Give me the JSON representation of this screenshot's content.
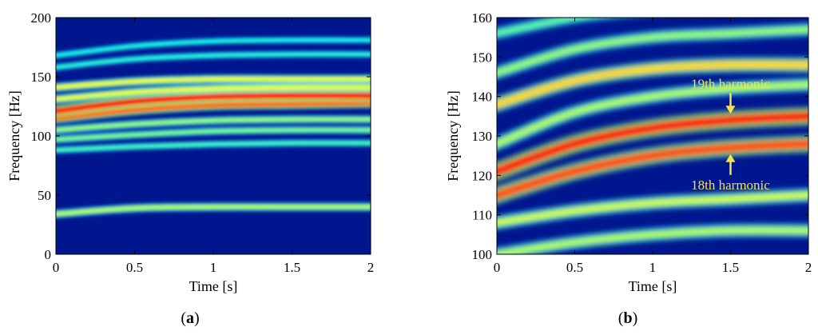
{
  "chart_data": [
    {
      "type": "heatmap",
      "panel_label": "a",
      "xlabel": "Time [s]",
      "ylabel": "Frequency [Hz]",
      "xlim": [
        0,
        2
      ],
      "ylim": [
        0,
        200
      ],
      "xticks": [
        0,
        0.5,
        1,
        1.5,
        2
      ],
      "xtick_labels": [
        "0",
        "0.5",
        "1",
        "1.5",
        "2"
      ],
      "yticks": [
        0,
        50,
        100,
        150,
        200
      ],
      "ytick_labels": [
        "0",
        "50",
        "100",
        "150",
        "200"
      ],
      "background_color": "#00168f",
      "ridges": [
        {
          "x": [
            0,
            0.5,
            1,
            1.5,
            2
          ],
          "y": [
            34,
            39,
            40,
            40,
            40
          ],
          "intensity": 0.45
        },
        {
          "x": [
            0,
            0.5,
            1,
            1.5,
            2
          ],
          "y": [
            88,
            91,
            93,
            94,
            94
          ],
          "intensity": 0.25
        },
        {
          "x": [
            0,
            0.5,
            1,
            1.5,
            2
          ],
          "y": [
            97,
            101,
            104,
            105,
            105
          ],
          "intensity": 0.35
        },
        {
          "x": [
            0,
            0.5,
            1,
            1.5,
            2
          ],
          "y": [
            105,
            110,
            113,
            114,
            114
          ],
          "intensity": 0.4
        },
        {
          "x": [
            0,
            0.5,
            1,
            1.5,
            2
          ],
          "y": [
            115,
            122,
            126,
            127,
            128
          ],
          "intensity": 0.85
        },
        {
          "x": [
            0,
            0.5,
            1,
            1.5,
            2
          ],
          "y": [
            121,
            129,
            133,
            134,
            134
          ],
          "intensity": 1.0
        },
        {
          "x": [
            0,
            0.5,
            1,
            1.5,
            2
          ],
          "y": [
            131,
            137,
            140,
            141,
            141
          ],
          "intensity": 0.55
        },
        {
          "x": [
            0,
            0.5,
            1,
            1.5,
            2
          ],
          "y": [
            141,
            146,
            148,
            148,
            148
          ],
          "intensity": 0.55
        },
        {
          "x": [
            0,
            0.5,
            1,
            1.5,
            2
          ],
          "y": [
            158,
            165,
            168,
            169,
            169
          ],
          "intensity": 0.2
        },
        {
          "x": [
            0,
            0.5,
            1,
            1.5,
            2
          ],
          "y": [
            168,
            176,
            180,
            181,
            181
          ],
          "intensity": 0.18
        }
      ]
    },
    {
      "type": "heatmap",
      "panel_label": "b",
      "xlabel": "Time [s]",
      "ylabel": "Frequency [Hz]",
      "xlim": [
        0,
        2
      ],
      "ylim": [
        100,
        160
      ],
      "xticks": [
        0,
        0.5,
        1,
        1.5,
        2
      ],
      "xtick_labels": [
        "0",
        "0.5",
        "1",
        "1.5",
        "2"
      ],
      "yticks": [
        100,
        110,
        120,
        130,
        140,
        150,
        160
      ],
      "ytick_labels": [
        "100",
        "110",
        "120",
        "130",
        "140",
        "150",
        "160"
      ],
      "background_color": "#00168f",
      "ridges": [
        {
          "x": [
            0,
            0.5,
            1,
            1.5,
            2
          ],
          "y": [
            100,
            103,
            105,
            106,
            106
          ],
          "intensity": 0.45
        },
        {
          "x": [
            0,
            0.5,
            1,
            1.5,
            2
          ],
          "y": [
            108,
            111,
            113,
            114,
            115
          ],
          "intensity": 0.5
        },
        {
          "x": [
            0,
            0.5,
            1,
            1.5,
            2
          ],
          "y": [
            115,
            121,
            125,
            127,
            128
          ],
          "intensity": 0.9
        },
        {
          "x": [
            0,
            0.5,
            1,
            1.5,
            2
          ],
          "y": [
            121,
            128,
            132,
            134,
            135
          ],
          "intensity": 1.0
        },
        {
          "x": [
            0,
            0.5,
            1,
            1.5,
            2
          ],
          "y": [
            128,
            136,
            140,
            142,
            143
          ],
          "intensity": 0.45
        },
        {
          "x": [
            0,
            0.5,
            1,
            1.5,
            2
          ],
          "y": [
            138,
            144,
            147,
            148,
            148
          ],
          "intensity": 0.65
        },
        {
          "x": [
            0,
            0.5,
            1,
            1.5,
            2
          ],
          "y": [
            146,
            152,
            155,
            156,
            157
          ],
          "intensity": 0.4
        },
        {
          "x": [
            0,
            0.5,
            1,
            1.5,
            2
          ],
          "y": [
            156,
            160,
            162,
            163,
            163
          ],
          "intensity": 0.3
        }
      ],
      "annotations": [
        {
          "text": "19th harmonic",
          "x": 1.5,
          "y": 134,
          "text_position": "above"
        },
        {
          "text": "18th harmonic",
          "x": 1.5,
          "y": 127,
          "text_position": "below"
        }
      ]
    }
  ]
}
